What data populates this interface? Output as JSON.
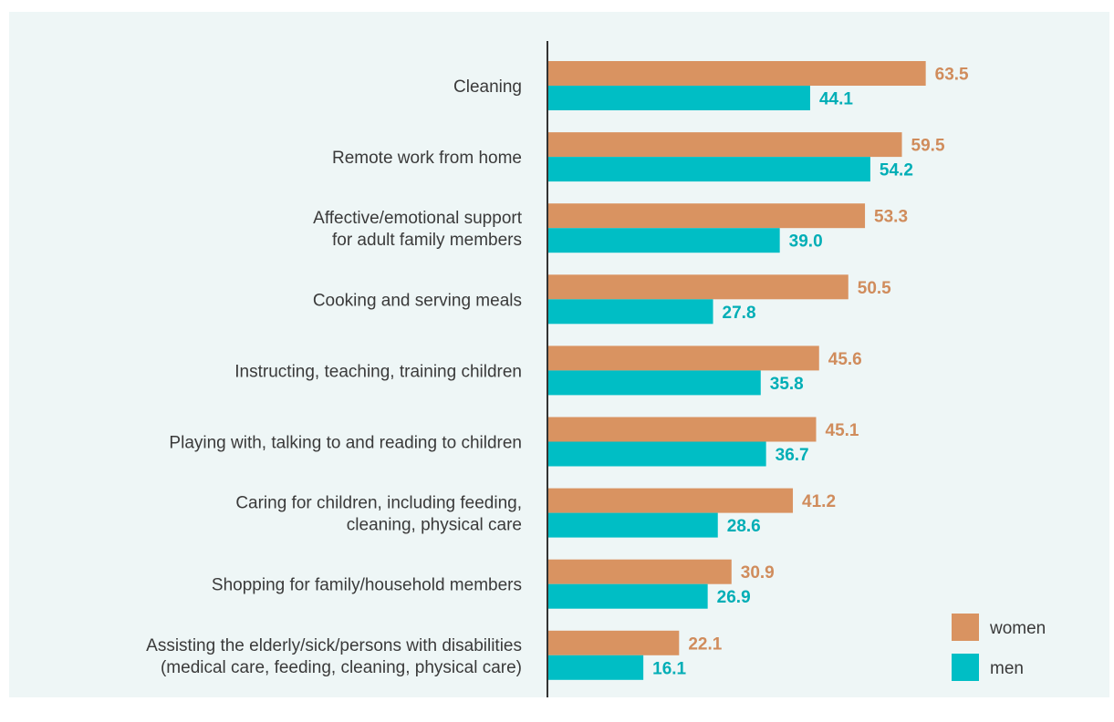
{
  "chart_data": {
    "type": "bar",
    "orientation": "horizontal",
    "categories": [
      [
        "Cleaning"
      ],
      [
        "Remote work from home"
      ],
      [
        "Affective/emotional support",
        "for adult family members"
      ],
      [
        "Cooking and serving meals"
      ],
      [
        "Instructing, teaching, training children"
      ],
      [
        "Playing with, talking to and reading to children"
      ],
      [
        "Caring for children, including feeding,",
        "cleaning, physical care"
      ],
      [
        "Shopping for family/household members"
      ],
      [
        "Assisting the elderly/sick/persons with disabilities",
        "(medical care, feeding, cleaning, physical care)"
      ]
    ],
    "series": [
      {
        "name": "women",
        "color": "#d99361",
        "label_color": "#d08c5c",
        "values": [
          63.5,
          59.5,
          53.3,
          50.5,
          45.6,
          45.1,
          41.2,
          30.9,
          22.1
        ]
      },
      {
        "name": "men",
        "color": "#00bec5",
        "label_color": "#00aeb6",
        "values": [
          44.1,
          54.2,
          39.0,
          27.8,
          35.8,
          36.7,
          28.6,
          26.9,
          16.1
        ]
      }
    ],
    "xlim": [
      0,
      100
    ],
    "grid": false,
    "legend_position": "bottom-right",
    "title": "",
    "xlabel": "",
    "ylabel": ""
  },
  "colors": {
    "background": "#eef6f6",
    "axis": "#333333",
    "category_text": "#3a3a3a"
  }
}
